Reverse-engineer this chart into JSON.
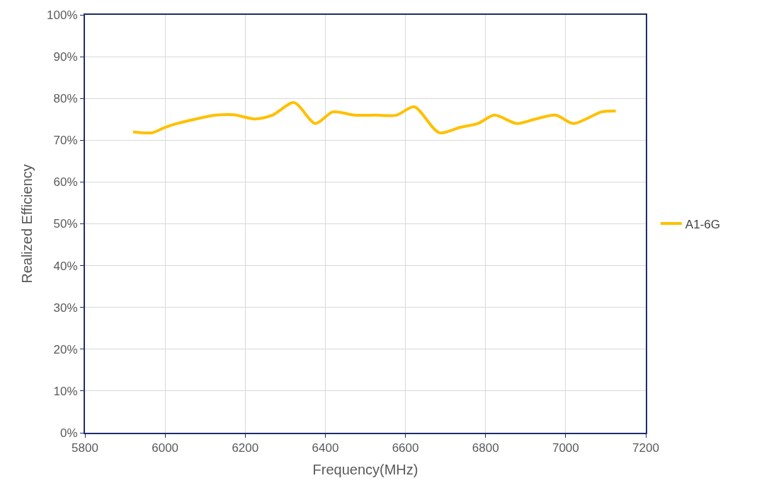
{
  "chart_data": {
    "type": "line",
    "xlabel": "Frequency(MHz)",
    "ylabel": "Realized Efficiency",
    "x": [
      5920,
      5968,
      5998,
      6030,
      6074,
      6127,
      6171,
      6224,
      6268,
      6322,
      6375,
      6419,
      6472,
      6525,
      6578,
      6622,
      6684,
      6737,
      6781,
      6822,
      6878,
      6922,
      6975,
      7019,
      7090,
      7125
    ],
    "series": [
      {
        "name": "A1-6G",
        "color": "#ffc000",
        "values": [
          72,
          71.8,
          73,
          74,
          75,
          76,
          76.1,
          75.1,
          76,
          79,
          74,
          76.8,
          76,
          76,
          76,
          78,
          71.8,
          73.1,
          74,
          76,
          74,
          75,
          76,
          74,
          76.8,
          77
        ]
      }
    ],
    "xlim": [
      5800,
      7200
    ],
    "xticks": [
      5800,
      6000,
      6200,
      6400,
      6600,
      6800,
      7000,
      7200
    ],
    "ylim": [
      0,
      100
    ],
    "yticks": [
      {
        "value": 0,
        "label": "0%"
      },
      {
        "value": 10,
        "label": "10%"
      },
      {
        "value": 20,
        "label": "20%"
      },
      {
        "value": 30,
        "label": "30%"
      },
      {
        "value": 40,
        "label": "40%"
      },
      {
        "value": 50,
        "label": "50%"
      },
      {
        "value": 60,
        "label": "60%"
      },
      {
        "value": 70,
        "label": "70%"
      },
      {
        "value": 80,
        "label": "80%"
      },
      {
        "value": 90,
        "label": "90%"
      },
      {
        "value": 100,
        "label": "100%"
      }
    ],
    "grid": true,
    "legend": "right",
    "marker": "none",
    "line_style": "solid"
  }
}
